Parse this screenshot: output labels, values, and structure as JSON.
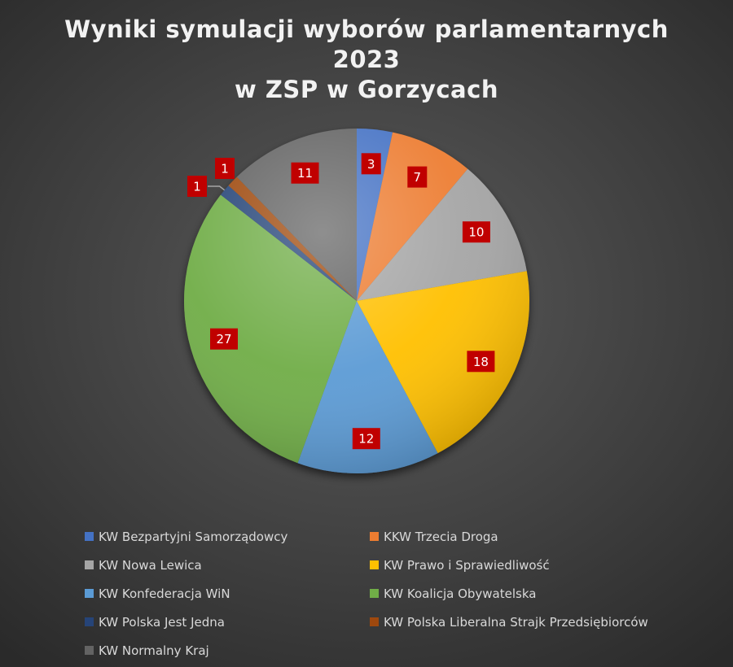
{
  "chart_data": {
    "type": "pie",
    "title_lines": [
      "Wyniki symulacji wyborów parlamentarnych",
      "2023",
      "w ZSP w Gorzycach"
    ],
    "categories": [
      "KW Bezpartyjni Samorządowcy",
      "KKW Trzecia Droga",
      "KW Nowa Lewica",
      "KW Prawo i Sprawiedliwość",
      "KW Konfederacja WiN",
      "KW Koalicja Obywatelska",
      "KW Polska Jest Jedna",
      "KW Polska Liberalna Strajk Przedsiębiorców",
      "KW Normalny Kraj"
    ],
    "values": [
      3,
      7,
      10,
      18,
      12,
      27,
      1,
      1,
      11
    ],
    "colors": [
      "#4472c4",
      "#ed7d31",
      "#a5a5a5",
      "#ffc000",
      "#5b9bd5",
      "#70ad47",
      "#264478",
      "#9e480e",
      "#636363"
    ],
    "data_label_color": "#c00000",
    "legend_position": "bottom",
    "grid": false
  }
}
